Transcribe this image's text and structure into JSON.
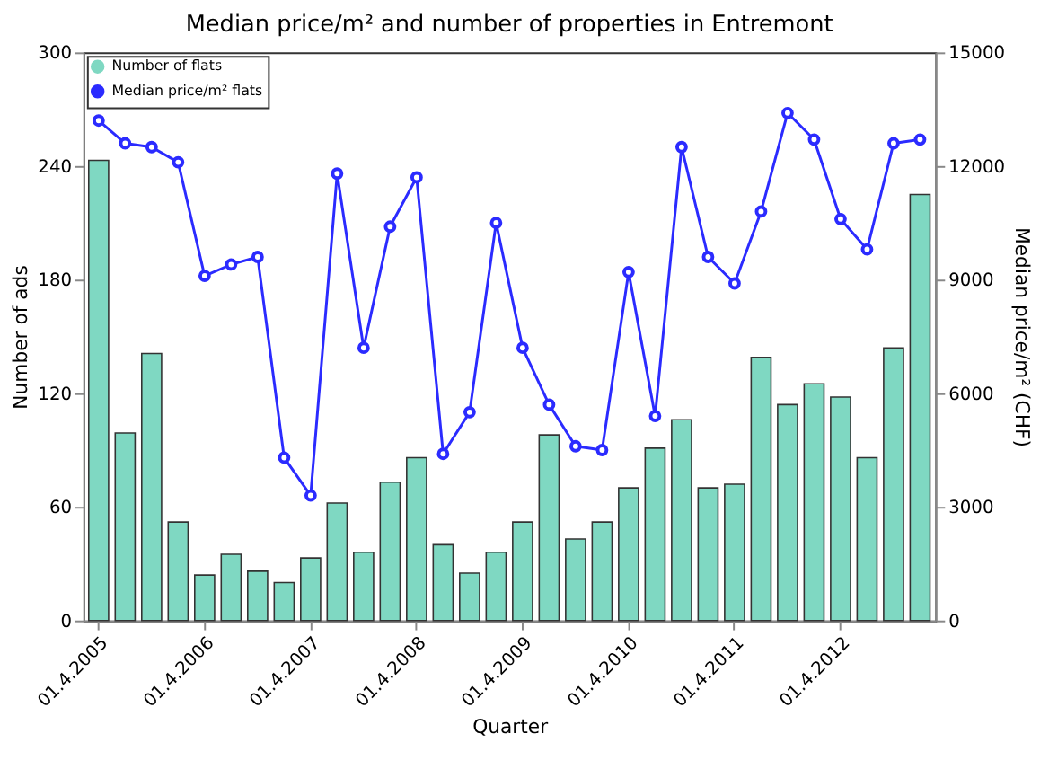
{
  "chart_data": {
    "type": "bar",
    "title": "Median price/m² and number of properties in Entremont",
    "xlabel": "Quarter",
    "ylabel": "Number of ads",
    "y2label": "Median price/m² (CHF)",
    "categories": [
      "01.4.2005",
      null,
      null,
      null,
      "01.4.2006",
      null,
      null,
      null,
      "01.4.2007",
      null,
      null,
      null,
      "01.4.2008",
      null,
      null,
      null,
      "01.4.2009",
      null,
      null,
      null,
      "01.4.2010",
      null,
      null,
      null,
      "01.4.2011",
      null,
      null,
      null,
      "01.4.2012",
      null,
      null,
      null
    ],
    "series": [
      {
        "name": "Number of flats",
        "color": "#7fd8c2",
        "values": [
          243,
          99,
          141,
          52,
          24,
          35,
          26,
          20,
          33,
          62,
          36,
          73,
          86,
          40,
          25,
          36,
          52,
          98,
          43,
          52,
          70,
          91,
          106,
          70,
          72,
          139,
          114,
          125,
          118,
          86,
          144,
          225
        ]
      },
      {
        "name": "Median price/m² flats",
        "type": "line",
        "axis": "y2",
        "color": "#2b2bff",
        "marker": "circle",
        "values": [
          13200,
          12600,
          12500,
          12100,
          9100,
          9400,
          9600,
          4300,
          3300,
          11800,
          7200,
          10400,
          11700,
          4400,
          5500,
          10500,
          7200,
          5700,
          4600,
          4500,
          9200,
          5400,
          12500,
          9600,
          8900,
          10800,
          13400,
          12700,
          10600,
          9800,
          12600,
          12700
        ]
      }
    ],
    "ylim": [
      0,
      300
    ],
    "yticks": [
      0,
      60,
      120,
      180,
      240,
      300
    ],
    "y2lim": [
      0,
      15000
    ],
    "y2ticks": [
      0,
      3000,
      6000,
      9000,
      12000,
      15000
    ],
    "grid": false,
    "legend": "top left"
  }
}
